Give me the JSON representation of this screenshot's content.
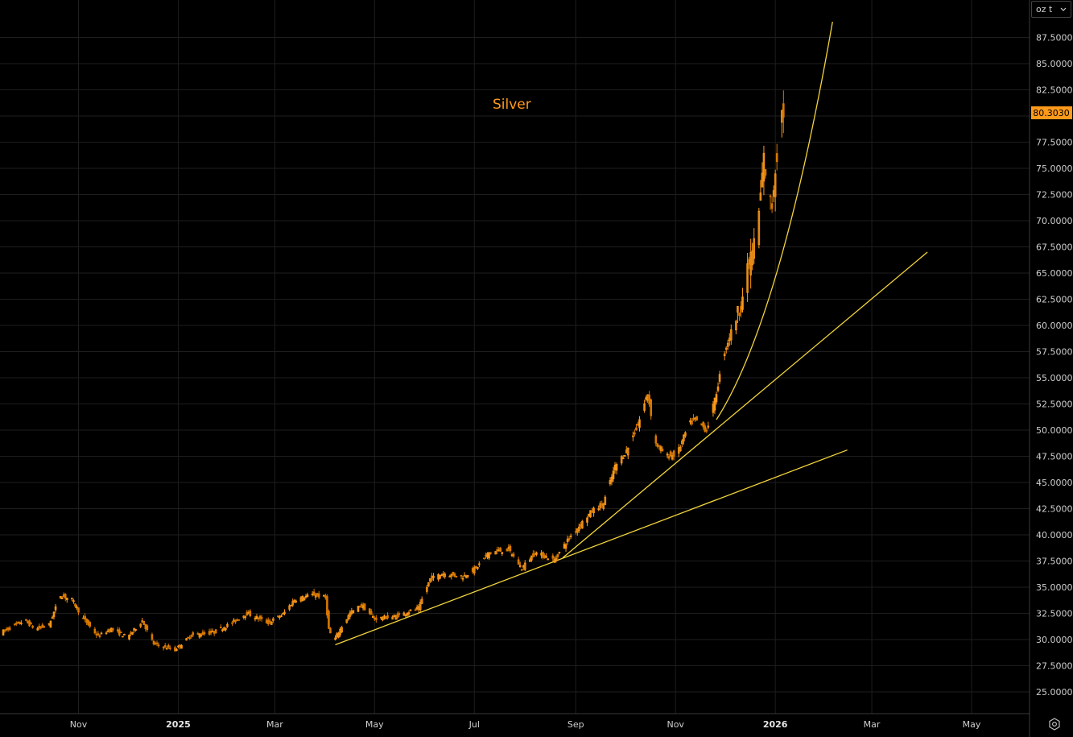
{
  "unit_select": {
    "value": "oz t",
    "icon": "chevron-down-icon"
  },
  "settings": {
    "icon": "gear-icon"
  },
  "colors": {
    "background": "#000000",
    "grid": "#1e1e1e",
    "up": "#ff9a1a",
    "down": "#d87800",
    "trendline": "#f2d43a",
    "label_bg": "#ff9a1a"
  },
  "chart_data": {
    "type": "candlestick",
    "title": "Silver",
    "unit": "oz t",
    "last_price": 80.303,
    "last_price_label": "80.3030",
    "yaxis": {
      "position": "right",
      "ylim": [
        23.5,
        90.0
      ],
      "ticks": [
        "25.0000",
        "27.5000",
        "30.0000",
        "32.5000",
        "35.0000",
        "37.5000",
        "40.0000",
        "42.5000",
        "45.0000",
        "47.5000",
        "50.0000",
        "52.5000",
        "55.0000",
        "57.5000",
        "60.0000",
        "62.5000",
        "65.0000",
        "67.5000",
        "70.0000",
        "72.5000",
        "75.0000",
        "77.5000",
        "80.0000",
        "82.5000",
        "85.0000",
        "87.5000"
      ]
    },
    "xaxis": {
      "xlim": [
        "2024-09-15",
        "2026-06-01"
      ],
      "ticks": [
        {
          "label": "Nov",
          "date": "2024-11-01"
        },
        {
          "label": "2025",
          "date": "2025-01-01",
          "major": true
        },
        {
          "label": "Mar",
          "date": "2025-03-01"
        },
        {
          "label": "May",
          "date": "2025-05-01"
        },
        {
          "label": "Jul",
          "date": "2025-07-01"
        },
        {
          "label": "Sep",
          "date": "2025-09-01"
        },
        {
          "label": "Nov",
          "date": "2025-11-01"
        },
        {
          "label": "2026",
          "date": "2026-01-01",
          "major": true
        },
        {
          "label": "Mar",
          "date": "2026-03-01"
        },
        {
          "label": "May",
          "date": "2026-05-01"
        }
      ]
    },
    "grid": true,
    "price_path": [
      [
        "2024-09-16",
        30.7
      ],
      [
        "2024-09-30",
        31.8
      ],
      [
        "2024-10-07",
        31.0
      ],
      [
        "2024-10-15",
        31.4
      ],
      [
        "2024-10-22",
        34.2
      ],
      [
        "2024-10-29",
        33.8
      ],
      [
        "2024-11-05",
        32.0
      ],
      [
        "2024-11-14",
        30.3
      ],
      [
        "2024-11-22",
        31.0
      ],
      [
        "2024-12-02",
        30.2
      ],
      [
        "2024-12-11",
        31.8
      ],
      [
        "2024-12-18",
        29.6
      ],
      [
        "2024-12-31",
        29.0
      ],
      [
        "2025-01-10",
        30.4
      ],
      [
        "2025-01-24",
        30.7
      ],
      [
        "2025-02-03",
        31.5
      ],
      [
        "2025-02-13",
        32.5
      ],
      [
        "2025-02-26",
        31.6
      ],
      [
        "2025-03-07",
        32.4
      ],
      [
        "2025-03-14",
        33.8
      ],
      [
        "2025-03-26",
        34.3
      ],
      [
        "2025-04-02",
        34.0
      ],
      [
        "2025-04-04",
        31.0
      ],
      [
        "2025-04-07",
        29.8
      ],
      [
        "2025-04-10",
        30.7
      ],
      [
        "2025-04-17",
        32.5
      ],
      [
        "2025-04-24",
        33.3
      ],
      [
        "2025-05-02",
        32.0
      ],
      [
        "2025-05-15",
        32.2
      ],
      [
        "2025-05-29",
        33.0
      ],
      [
        "2025-06-05",
        35.8
      ],
      [
        "2025-06-13",
        36.3
      ],
      [
        "2025-06-25",
        36.0
      ],
      [
        "2025-07-03",
        36.8
      ],
      [
        "2025-07-11",
        38.3
      ],
      [
        "2025-07-23",
        38.6
      ],
      [
        "2025-07-31",
        36.8
      ],
      [
        "2025-08-08",
        38.3
      ],
      [
        "2025-08-20",
        37.6
      ],
      [
        "2025-08-29",
        39.7
      ],
      [
        "2025-09-05",
        41.0
      ],
      [
        "2025-09-12",
        42.3
      ],
      [
        "2025-09-19",
        43.0
      ],
      [
        "2025-09-26",
        46.5
      ],
      [
        "2025-10-03",
        48.0
      ],
      [
        "2025-10-10",
        50.5
      ],
      [
        "2025-10-16",
        53.5
      ],
      [
        "2025-10-21",
        48.7
      ],
      [
        "2025-10-28",
        47.5
      ],
      [
        "2025-11-03",
        47.7
      ],
      [
        "2025-11-10",
        50.5
      ],
      [
        "2025-11-14",
        51.0
      ],
      [
        "2025-11-21",
        50.0
      ],
      [
        "2025-11-26",
        52.8
      ],
      [
        "2025-12-02",
        57.5
      ],
      [
        "2025-12-09",
        60.8
      ],
      [
        "2025-12-12",
        62.0
      ],
      [
        "2025-12-17",
        66.0
      ],
      [
        "2025-12-22",
        69.0
      ],
      [
        "2025-12-26",
        76.0
      ],
      [
        "2025-12-29",
        72.0
      ],
      [
        "2025-12-31",
        71.5
      ],
      [
        "2026-01-02",
        75.0
      ],
      [
        "2026-01-06",
        80.3
      ]
    ],
    "trendlines": [
      {
        "name": "trendline-1",
        "from": [
          "2025-04-07",
          29.5
        ],
        "to": [
          "2026-02-14",
          48.1
        ]
      },
      {
        "name": "trendline-2",
        "from": [
          "2025-08-24",
          37.8
        ],
        "to": [
          "2026-04-04",
          67.0
        ]
      },
      {
        "name": "trendline-3",
        "from": [
          "2025-11-26",
          51.0
        ],
        "to": [
          "2026-02-05",
          89.0
        ],
        "curved": true
      }
    ]
  }
}
